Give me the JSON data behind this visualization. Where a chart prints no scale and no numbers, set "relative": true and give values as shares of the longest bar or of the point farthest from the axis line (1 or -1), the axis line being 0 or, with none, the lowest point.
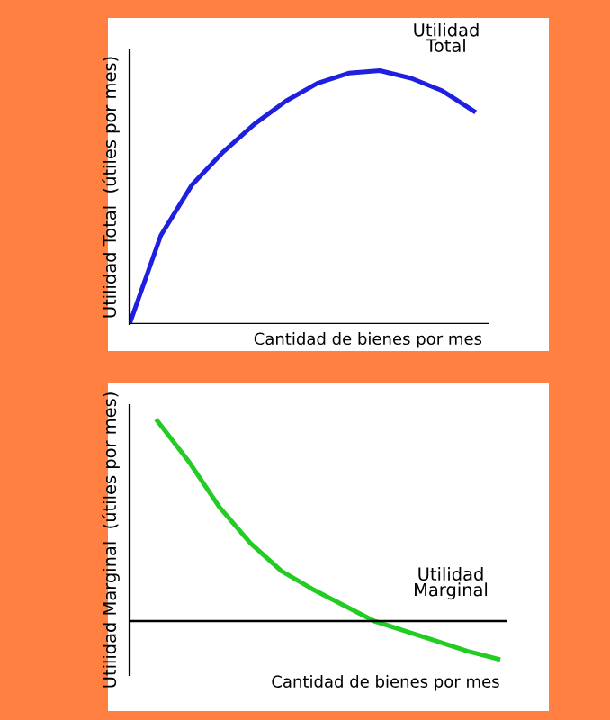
{
  "chart_data": [
    {
      "type": "line",
      "relative": true,
      "ylabel": "Utilidad Total  (útiles por mes)",
      "xlabel": "Cantidad de bienes por mes",
      "annotations": [
        "Utilidad\nTotal"
      ],
      "categories": [
        null,
        null,
        null,
        null,
        null,
        null,
        null,
        null,
        null,
        null,
        null,
        null
      ],
      "series": [
        {
          "color": "#1f1fe0",
          "values": [
            0,
            0.35,
            0.55,
            0.68,
            0.79,
            0.88,
            0.95,
            0.99,
            1.0,
            0.97,
            0.92,
            0.84
          ]
        }
      ]
    },
    {
      "type": "line",
      "relative": true,
      "ylabel": "Utilidad Marginal  (útiles por mes)",
      "xlabel": "Cantidad de bienes por mes",
      "annotations": [
        "Utilidad\nMarginal"
      ],
      "categories": [
        null,
        null,
        null,
        null,
        null,
        null,
        null,
        null,
        null,
        null,
        null,
        null
      ],
      "series": [
        {
          "color": "#22cc22",
          "values": [
            1,
            0.8,
            0.57,
            0.39,
            0.25,
            0.16,
            0.08,
            0,
            -0.05,
            -0.1,
            -0.15,
            -0.19
          ]
        }
      ]
    }
  ]
}
